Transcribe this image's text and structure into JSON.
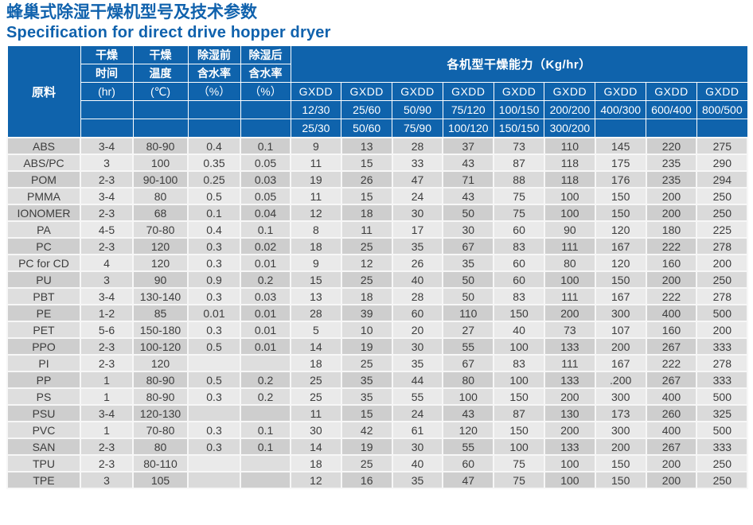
{
  "page": {
    "title_zh": "蜂巢式除湿干燥机型号及技术参数",
    "title_en": "Specification for direct drive hopper dryer"
  },
  "colors": {
    "title_blue": "#1062ad",
    "header_blue": "#0f63ac",
    "row_dark": "#cecece",
    "row_light": "#eaeaea"
  },
  "table": {
    "header": {
      "material_label": "原料",
      "capacity_title": "各机型干燥能力（Kg/hr）",
      "brand": "GXDD",
      "param_cols": [
        {
          "line1": "干燥",
          "line2": "时间",
          "line3": "(hr)"
        },
        {
          "line1": "干燥",
          "line2": "温度",
          "line3": "(℃)"
        },
        {
          "line1": "除湿前",
          "line2": "含水率",
          "line3": "（%）"
        },
        {
          "line1": "除湿后",
          "line2": "含水率",
          "line3": "（%）"
        }
      ],
      "models_row1": [
        "12/30",
        "25/60",
        "50/90",
        "75/120",
        "100/150",
        "200/200",
        "400/300",
        "600/400",
        "800/500"
      ],
      "models_row2": [
        "25/30",
        "50/60",
        "75/90",
        "100/120",
        "150/150",
        "300/200",
        "",
        "",
        ""
      ]
    },
    "rows": [
      {
        "material": "ABS",
        "time": "3-4",
        "temp": "80-90",
        "before": "0.4",
        "after": "0.1",
        "capacity": [
          "9",
          "13",
          "28",
          "37",
          "73",
          "110",
          "145",
          "220",
          "275"
        ]
      },
      {
        "material": "ABS/PC",
        "time": "3",
        "temp": "100",
        "before": "0.35",
        "after": "0.05",
        "capacity": [
          "11",
          "15",
          "33",
          "43",
          "87",
          "118",
          "175",
          "235",
          "290"
        ]
      },
      {
        "material": "POM",
        "time": "2-3",
        "temp": "90-100",
        "before": "0.25",
        "after": "0.03",
        "capacity": [
          "19",
          "26",
          "47",
          "71",
          "88",
          "118",
          "176",
          "235",
          "294"
        ]
      },
      {
        "material": "PMMA",
        "time": "3-4",
        "temp": "80",
        "before": "0.5",
        "after": "0.05",
        "capacity": [
          "11",
          "15",
          "24",
          "43",
          "75",
          "100",
          "150",
          "200",
          "250"
        ]
      },
      {
        "material": "IONOMER",
        "time": "2-3",
        "temp": "68",
        "before": "0.1",
        "after": "0.04",
        "capacity": [
          "12",
          "18",
          "30",
          "50",
          "75",
          "100",
          "150",
          "200",
          "250"
        ]
      },
      {
        "material": "PA",
        "time": "4-5",
        "temp": "70-80",
        "before": "0.4",
        "after": "0.1",
        "capacity": [
          "8",
          "11",
          "17",
          "30",
          "60",
          "90",
          "120",
          "180",
          "225"
        ]
      },
      {
        "material": "PC",
        "time": "2-3",
        "temp": "120",
        "before": "0.3",
        "after": "0.02",
        "capacity": [
          "18",
          "25",
          "35",
          "67",
          "83",
          "111",
          "167",
          "222",
          "278"
        ]
      },
      {
        "material": "PC for CD",
        "time": "4",
        "temp": "120",
        "before": "0.3",
        "after": "0.01",
        "capacity": [
          "9",
          "12",
          "26",
          "35",
          "60",
          "80",
          "120",
          "160",
          "200"
        ]
      },
      {
        "material": "PU",
        "time": "3",
        "temp": "90",
        "before": "0.9",
        "after": "0.2",
        "capacity": [
          "15",
          "25",
          "40",
          "50",
          "60",
          "100",
          "150",
          "200",
          "250"
        ]
      },
      {
        "material": "PBT",
        "time": "3-4",
        "temp": "130-140",
        "before": "0.3",
        "after": "0.03",
        "capacity": [
          "13",
          "18",
          "28",
          "50",
          "83",
          "111",
          "167",
          "222",
          "278"
        ]
      },
      {
        "material": "PE",
        "time": "1-2",
        "temp": "85",
        "before": "0.01",
        "after": "0.01",
        "capacity": [
          "28",
          "39",
          "60",
          "110",
          "150",
          "200",
          "300",
          "400",
          "500"
        ]
      },
      {
        "material": "PET",
        "time": "5-6",
        "temp": "150-180",
        "before": "0.3",
        "after": "0.01",
        "capacity": [
          "5",
          "10",
          "20",
          "27",
          "40",
          "73",
          "107",
          "160",
          "200"
        ]
      },
      {
        "material": "PPO",
        "time": "2-3",
        "temp": "100-120",
        "before": "0.5",
        "after": "0.01",
        "capacity": [
          "14",
          "19",
          "30",
          "55",
          "100",
          "133",
          "200",
          "267",
          "333"
        ]
      },
      {
        "material": "PI",
        "time": "2-3",
        "temp": "120",
        "before": "",
        "after": "",
        "capacity": [
          "18",
          "25",
          "35",
          "67",
          "83",
          "111",
          "167",
          "222",
          "278"
        ]
      },
      {
        "material": "PP",
        "time": "1",
        "temp": "80-90",
        "before": "0.5",
        "after": "0.2",
        "capacity": [
          "25",
          "35",
          "44",
          "80",
          "100",
          "133",
          ".200",
          "267",
          "333"
        ]
      },
      {
        "material": "PS",
        "time": "1",
        "temp": "80-90",
        "before": "0.3",
        "after": "0.2",
        "capacity": [
          "25",
          "35",
          "55",
          "100",
          "150",
          "200",
          "300",
          "400",
          "500"
        ]
      },
      {
        "material": "PSU",
        "time": "3-4",
        "temp": "120-130",
        "before": "",
        "after": "",
        "capacity": [
          "11",
          "15",
          "24",
          "43",
          "87",
          "130",
          "173",
          "260",
          "325"
        ]
      },
      {
        "material": "PVC",
        "time": "1",
        "temp": "70-80",
        "before": "0.3",
        "after": "0.1",
        "capacity": [
          "30",
          "42",
          "61",
          "120",
          "150",
          "200",
          "300",
          "400",
          "500"
        ]
      },
      {
        "material": "SAN",
        "time": "2-3",
        "temp": "80",
        "before": "0.3",
        "after": "0.1",
        "capacity": [
          "14",
          "19",
          "30",
          "55",
          "100",
          "133",
          "200",
          "267",
          "333"
        ]
      },
      {
        "material": "TPU",
        "time": "2-3",
        "temp": "80-110",
        "before": "",
        "after": "",
        "capacity": [
          "18",
          "25",
          "40",
          "60",
          "75",
          "100",
          "150",
          "200",
          "250"
        ]
      },
      {
        "material": "TPE",
        "time": "3",
        "temp": "105",
        "before": "",
        "after": "",
        "capacity": [
          "12",
          "16",
          "35",
          "47",
          "75",
          "100",
          "150",
          "200",
          "250"
        ]
      }
    ]
  }
}
